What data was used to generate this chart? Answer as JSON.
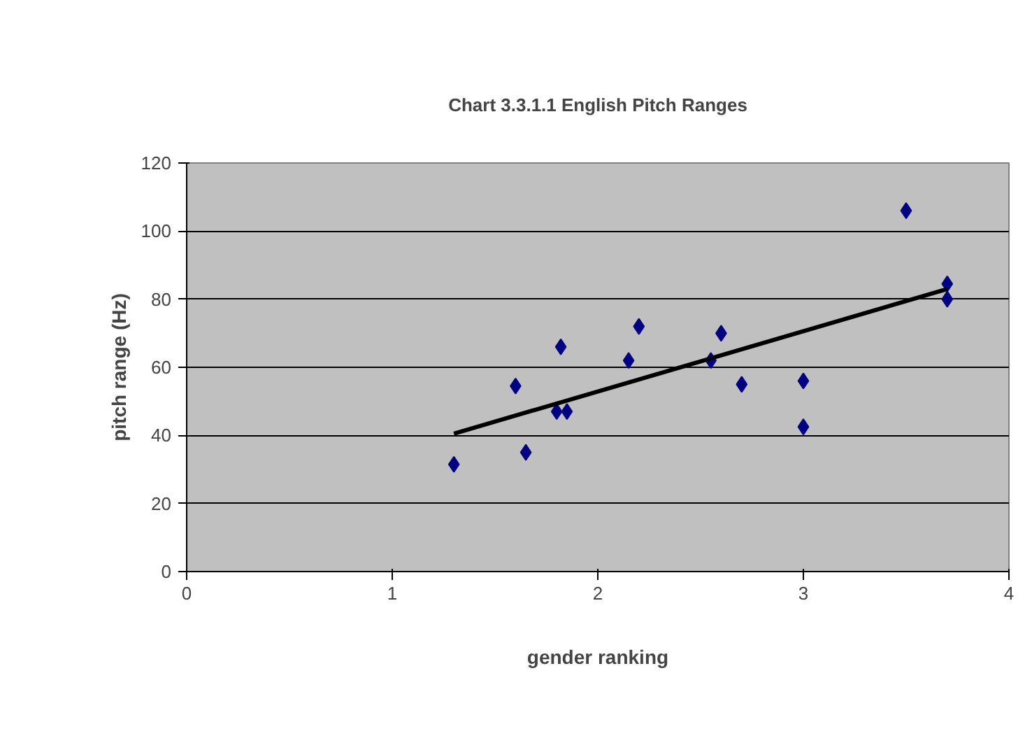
{
  "chart_data": {
    "type": "scatter",
    "title": "Chart 3.3.1.1 English Pitch Ranges",
    "xlabel": "gender ranking",
    "ylabel": "pitch range (Hz)",
    "xlim": [
      0,
      4
    ],
    "ylim": [
      0,
      120
    ],
    "xticks": [
      0,
      1,
      2,
      3,
      4
    ],
    "yticks": [
      0,
      20,
      40,
      60,
      80,
      100,
      120
    ],
    "grid": "y",
    "marker": "diamond",
    "series": [
      {
        "color": "#000080",
        "x": [
          1.3,
          1.6,
          1.65,
          1.8,
          1.82,
          1.85,
          2.15,
          2.2,
          2.55,
          2.6,
          2.7,
          3.0,
          3.0,
          3.5,
          3.7,
          3.7
        ],
        "values": [
          31.5,
          54.5,
          35,
          47,
          66,
          47,
          62,
          72,
          62,
          70,
          55,
          56,
          42.5,
          106,
          84.5,
          80
        ]
      },
      {
        "type": "line",
        "marker": "none",
        "color": "#000000",
        "x": [
          1.3,
          3.7
        ],
        "values": [
          40.5,
          83
        ]
      }
    ]
  }
}
